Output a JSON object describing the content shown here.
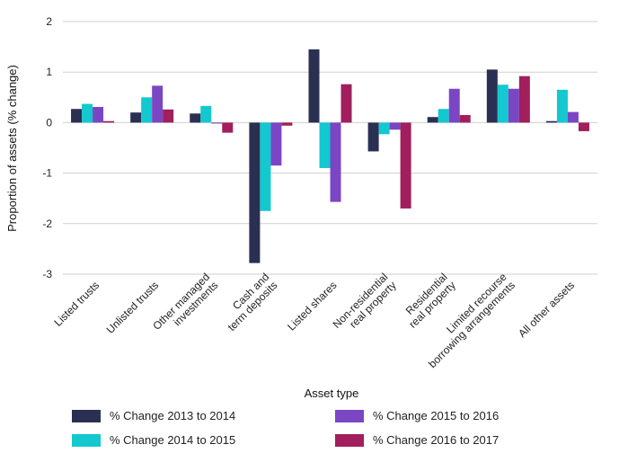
{
  "chart_data": {
    "type": "bar",
    "categories": [
      [
        "Listed trusts"
      ],
      [
        "Unlisted trusts"
      ],
      [
        "Other managed",
        "investments"
      ],
      [
        "Cash and",
        "term deposits"
      ],
      [
        "Listed shares"
      ],
      [
        "Non-residential",
        "real property"
      ],
      [
        "Residential",
        "real property"
      ],
      [
        "Limited recourse",
        "borrowing arrangements"
      ],
      [
        "All other assets"
      ]
    ],
    "series": [
      {
        "name": "% Change 2013 to 2014",
        "color": "#2b2f52",
        "values": [
          0.27,
          0.2,
          0.18,
          -2.78,
          1.45,
          -0.57,
          0.11,
          1.05,
          0.03
        ]
      },
      {
        "name": "% Change 2014 to 2015",
        "color": "#13c8cf",
        "values": [
          0.37,
          0.5,
          0.33,
          -1.75,
          -0.9,
          -0.23,
          0.27,
          0.75,
          0.65
        ]
      },
      {
        "name": "% Change 2015 to 2016",
        "color": "#7b46c4",
        "values": [
          0.31,
          0.73,
          -0.02,
          -0.85,
          -1.57,
          -0.14,
          0.67,
          0.67,
          0.21
        ]
      },
      {
        "name": "% Change 2016 to 2017",
        "color": "#a01f5c",
        "values": [
          0.03,
          0.26,
          -0.2,
          -0.06,
          0.76,
          -1.7,
          0.15,
          0.92,
          -0.17
        ]
      }
    ],
    "xlabel": "Asset type",
    "ylabel": "Proportion of assets (% change)",
    "ylim": [
      -3,
      2
    ],
    "yticks": [
      2,
      1,
      0,
      -1,
      -2,
      -3
    ],
    "ytick_labels": [
      "2",
      "1",
      "0",
      "-1",
      "-2",
      "-3"
    ],
    "grid": true,
    "legend_position": "bottom"
  }
}
